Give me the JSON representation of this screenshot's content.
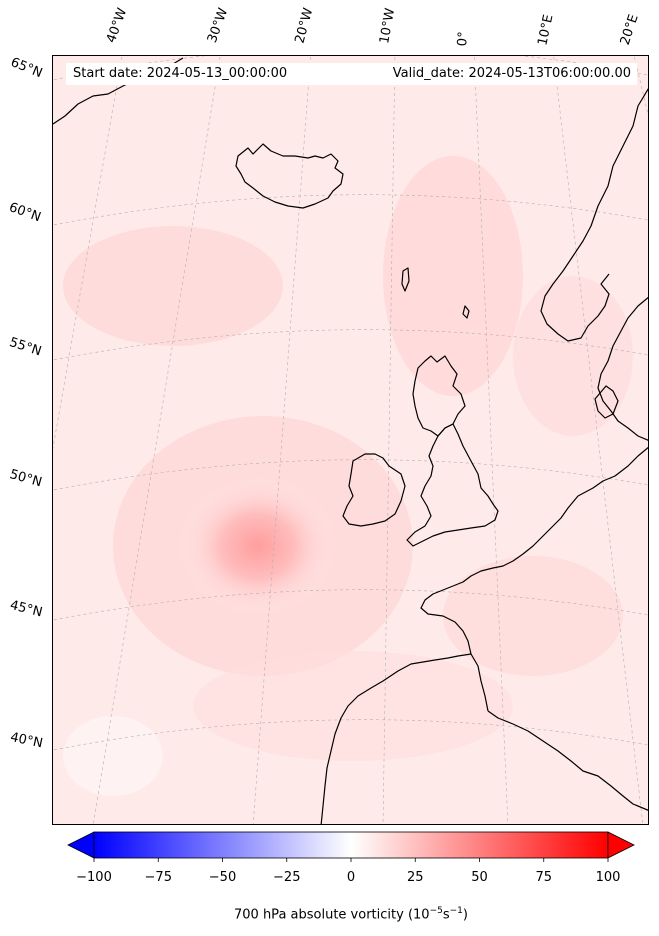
{
  "header": {
    "start_date": "Start date: 2024-05-13_00:00:00",
    "valid_date": "Valid_date: 2024-05-13T06:00:00.00"
  },
  "longitude_labels": [
    "40°W",
    "30°W",
    "20°W",
    "10°W",
    "0°",
    "10°E",
    "20°E"
  ],
  "latitude_labels": [
    "65°N",
    "60°N",
    "55°N",
    "50°N",
    "45°N",
    "40°N"
  ],
  "colorbar": {
    "ticks": [
      "−100",
      "−75",
      "−50",
      "−25",
      "0",
      "25",
      "50",
      "75",
      "100"
    ],
    "range": [
      -100,
      100
    ],
    "label_main": "700 hPa absolute vorticity (10",
    "label_sup1": "−5",
    "label_mid": "s",
    "label_sup2": "−1",
    "label_end": ")",
    "color_min": "#0000ff",
    "color_mid": "#ffffff",
    "color_max": "#ff0000",
    "extend": "both"
  },
  "map": {
    "field_background": "#ffeaea",
    "coastline_color": "#000000",
    "gridline_color": "#b0b0b0"
  }
}
